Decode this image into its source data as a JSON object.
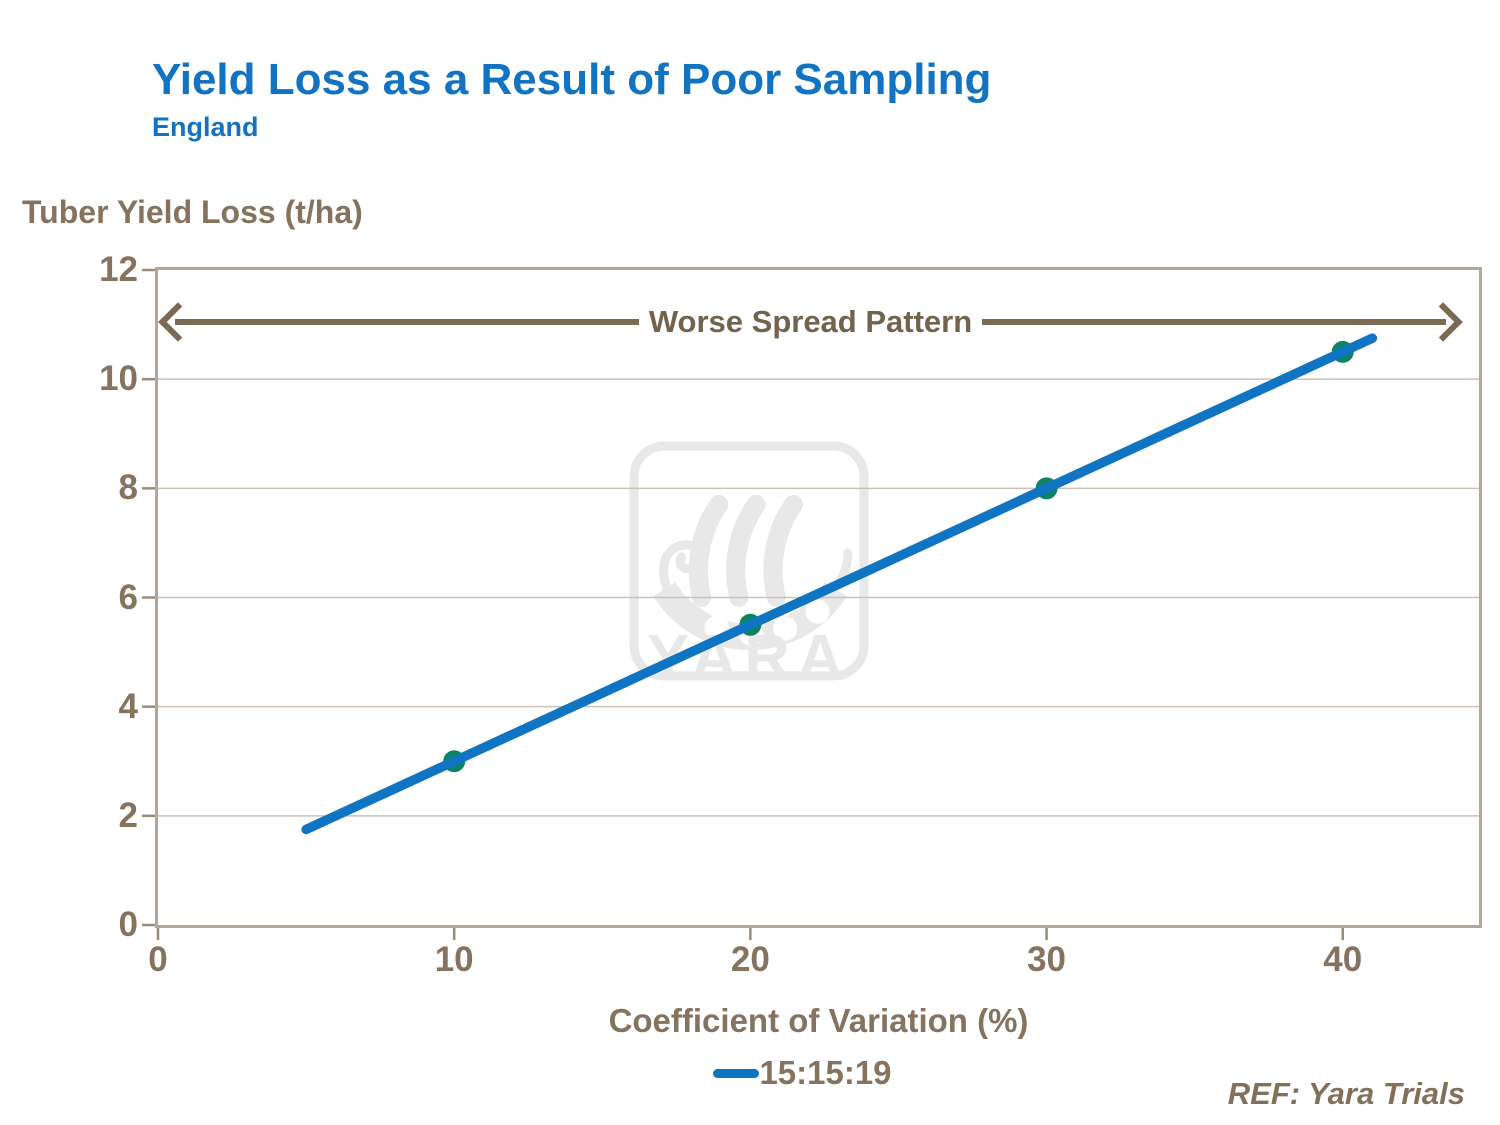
{
  "header": {
    "title": "Yield Loss as a Result of Poor Sampling",
    "subtitle": "England"
  },
  "footer": {
    "ref": "REF: Yara Trials"
  },
  "watermark": {
    "label": "YARA"
  },
  "colors": {
    "title_blue": "#1173C2",
    "line_blue": "#0F74C2",
    "marker_green": "#0E8363",
    "text_brown": "#86735F",
    "arrow_brown": "#7B6A53",
    "plot_border": "#B3A79B",
    "gridline": "#CBC1B4",
    "tick": "#9A8C7B",
    "watermark_gray": "#E8E8E8"
  },
  "chart_data": {
    "type": "line",
    "title": "Yield Loss as a Result of Poor Sampling",
    "subtitle": "England",
    "xlabel": "Coefficient of Variation (%)",
    "ylabel": "Tuber Yield Loss (t/ha)",
    "xlim": [
      0,
      44.6
    ],
    "ylim": [
      0,
      12
    ],
    "xticks": [
      0,
      10,
      20,
      30,
      40
    ],
    "yticks": [
      0,
      2,
      4,
      6,
      8,
      10,
      12
    ],
    "grid": "horizontal",
    "legend_position": "bottom-center",
    "series": [
      {
        "name": "15:15:19",
        "line_color": "#0F74C2",
        "marker_color": "#0E8363",
        "marker": "circle",
        "points": [
          {
            "x": 10,
            "y": 3.0
          },
          {
            "x": 20,
            "y": 5.5
          },
          {
            "x": 30,
            "y": 8.0
          },
          {
            "x": 40,
            "y": 10.5
          }
        ],
        "line_extent": [
          {
            "x": 5,
            "y": 1.75
          },
          {
            "x": 41,
            "y": 10.75
          }
        ]
      }
    ],
    "annotation": {
      "label": "Worse Spread Pattern",
      "y": 11.05,
      "style": "double-headed-arrow"
    }
  }
}
